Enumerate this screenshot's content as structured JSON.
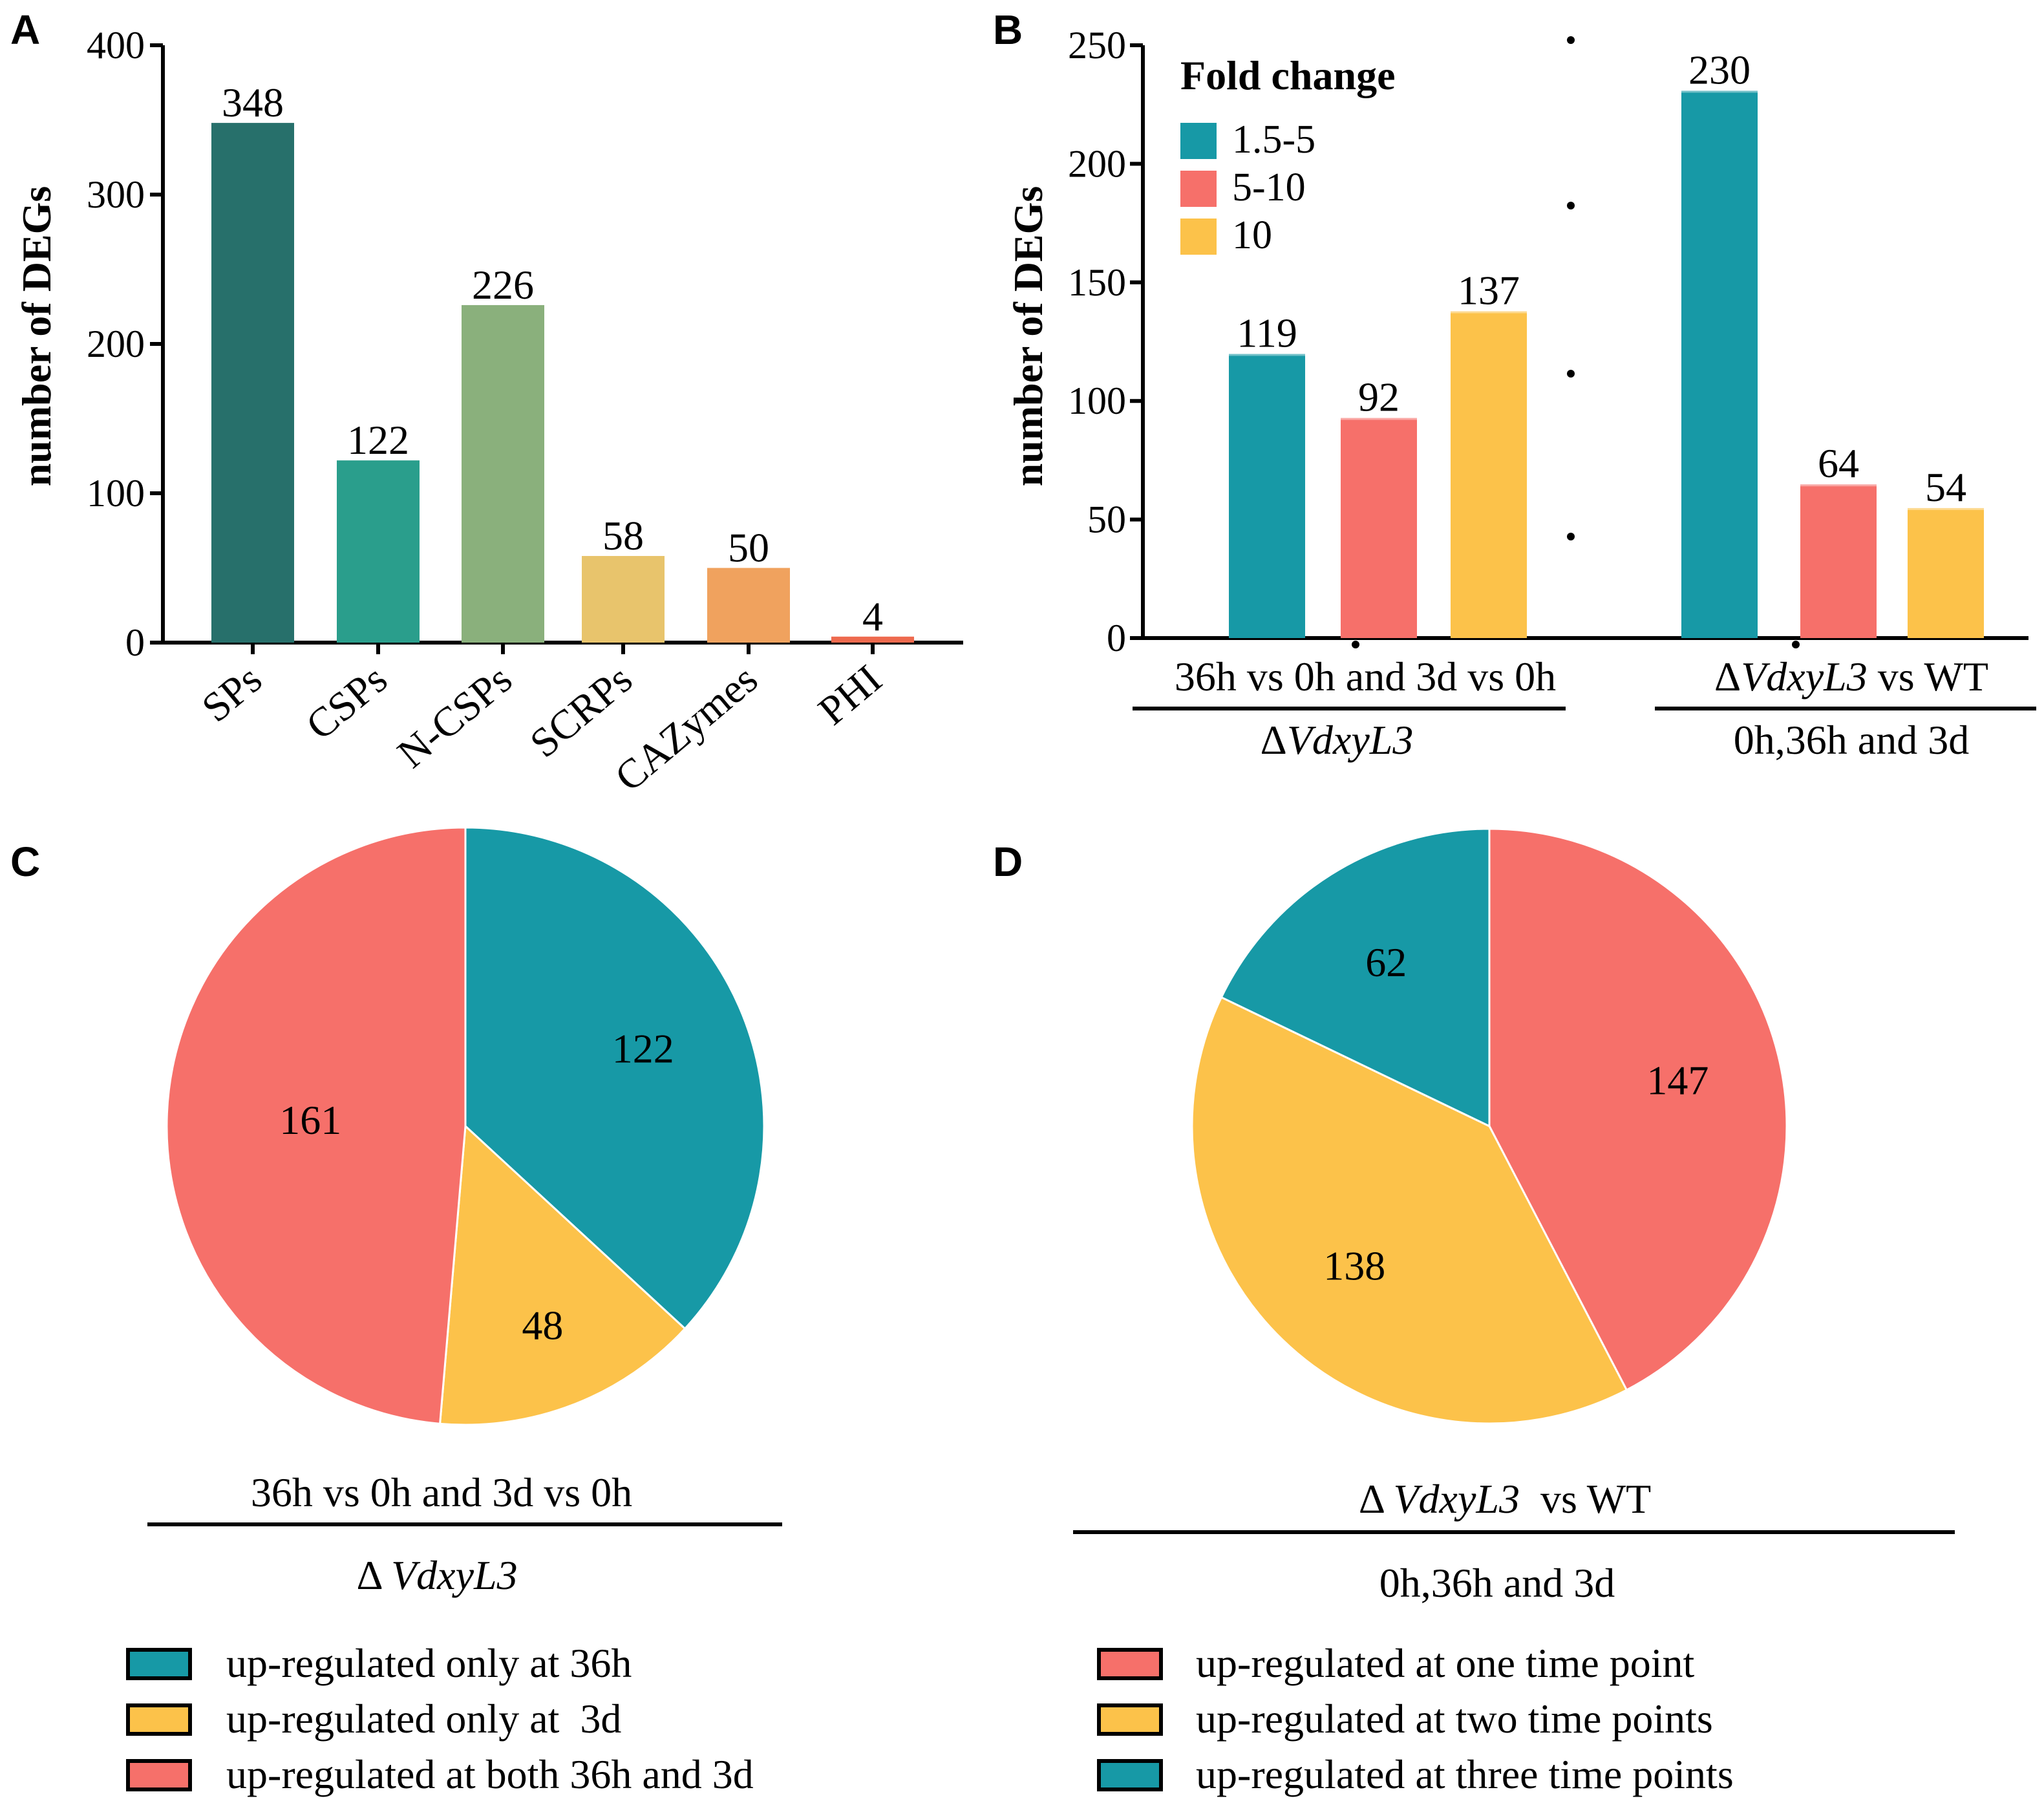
{
  "colors": {
    "teal": "#1799A6",
    "salmon": "#F6706A",
    "yellow": "#FCC24A",
    "axis": "#000000"
  },
  "chart_data": [
    {
      "panel": "A",
      "type": "bar",
      "ylabel": "number of DEGs",
      "ylim": [
        0,
        400
      ],
      "yticks": [
        0,
        100,
        200,
        300,
        400
      ],
      "categories": [
        "SPs",
        "CSPs",
        "N-CSPs",
        "SCRPs",
        "CAZymes",
        "PHI"
      ],
      "values": [
        348,
        122,
        226,
        58,
        50,
        4
      ],
      "bar_colors": [
        "#27706B",
        "#2A9E8C",
        "#8AB07C",
        "#E8C46C",
        "#F0A25E",
        "#EE6A4E"
      ],
      "data_labels": [
        "348",
        "122",
        "226",
        "58",
        "50",
        "4"
      ]
    },
    {
      "panel": "B",
      "type": "bar",
      "ylabel": "number of DEGs",
      "ylim": [
        0,
        250
      ],
      "yticks": [
        0,
        50,
        100,
        150,
        200,
        250
      ],
      "legend": {
        "title": "Fold change",
        "entries": [
          "1.5-5",
          "5-10",
          "10"
        ]
      },
      "groups": [
        {
          "label": "36h vs 0h and 3d vs 0h",
          "sublabel_prefix": "Δ",
          "sublabel_italic": "VdxyL3",
          "values": [
            119,
            92,
            137
          ],
          "data_labels": [
            "119",
            "92",
            "137"
          ]
        },
        {
          "label_prefix": "Δ",
          "label_italic": "VdxyL3",
          "label_suffix": " vs WT",
          "sublabel": "0h,36h and 3d",
          "values": [
            230,
            64,
            54
          ],
          "data_labels": [
            "230",
            "64",
            "54"
          ]
        }
      ]
    },
    {
      "panel": "C",
      "type": "pie",
      "slices": [
        {
          "label": "up-regulated only at 36h",
          "value": 122,
          "color": "teal"
        },
        {
          "label": "up-regulated only at  3d",
          "value": 48,
          "color": "yellow"
        },
        {
          "label": "up-regulated at both 36h and 3d",
          "value": 161,
          "color": "salmon"
        }
      ],
      "caption_top": "36h vs 0h and 3d vs 0h",
      "caption_bottom_prefix": "Δ ",
      "caption_bottom_italic": "VdxyL3"
    },
    {
      "panel": "D",
      "type": "pie",
      "slices": [
        {
          "label": "up-regulated at one time point",
          "value": 147,
          "color": "salmon"
        },
        {
          "label": "up-regulated at two time points",
          "value": 138,
          "color": "yellow"
        },
        {
          "label": "up-regulated at three time points",
          "value": 62,
          "color": "teal"
        }
      ],
      "caption_top_prefix": "Δ ",
      "caption_top_italic": "VdxyL3",
      "caption_top_suffix": "  vs WT",
      "caption_bottom": "0h,36h and 3d"
    }
  ]
}
